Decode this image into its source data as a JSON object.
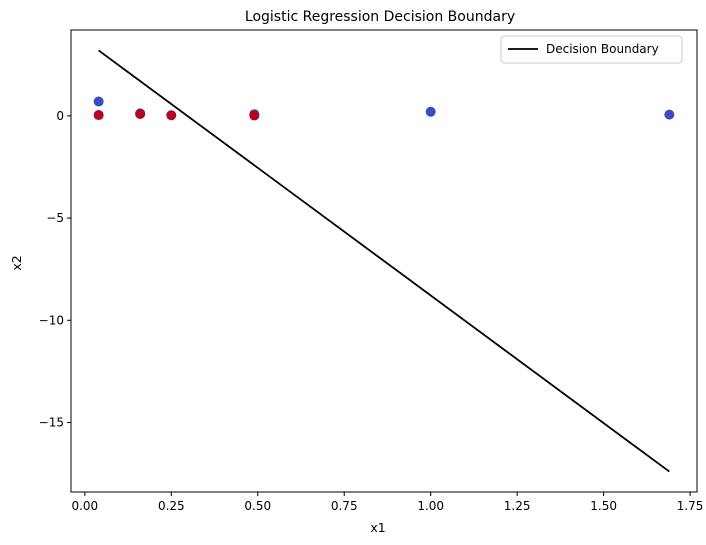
{
  "chart_data": {
    "type": "scatter",
    "title": "Logistic Regression Decision Boundary",
    "xlabel": "x1",
    "ylabel": "x2",
    "xlim": [
      -0.04,
      1.77
    ],
    "ylim": [
      -18.4,
      4.2
    ],
    "xticks": [
      0.0,
      0.25,
      0.5,
      0.75,
      1.0,
      1.25,
      1.5,
      1.75
    ],
    "xtick_labels": [
      "0.00",
      "0.25",
      "0.50",
      "0.75",
      "1.00",
      "1.25",
      "1.50",
      "1.75"
    ],
    "yticks": [
      -15,
      -10,
      -5,
      0
    ],
    "ytick_labels": [
      "−15",
      "−10",
      "−5",
      "0"
    ],
    "grid": false,
    "legend_position": "top-right",
    "colors": {
      "class0": "#3b4cc0",
      "class1": "#b40426",
      "boundary": "#000000"
    },
    "points": [
      {
        "x": 0.04,
        "y": 0.7,
        "class": 0
      },
      {
        "x": 0.04,
        "y": 0.04,
        "class": 1
      },
      {
        "x": 0.16,
        "y": 0.12,
        "class": 0
      },
      {
        "x": 0.16,
        "y": 0.09,
        "class": 1
      },
      {
        "x": 0.25,
        "y": 0.03,
        "class": 1
      },
      {
        "x": 0.49,
        "y": 0.08,
        "class": 0
      },
      {
        "x": 0.49,
        "y": 0.02,
        "class": 1
      },
      {
        "x": 1.0,
        "y": 0.2,
        "class": 0
      },
      {
        "x": 1.69,
        "y": 0.06,
        "class": 0
      }
    ],
    "series": [
      {
        "name": "Decision Boundary",
        "type": "line",
        "x": [
          0.04,
          1.69
        ],
        "y": [
          3.2,
          -17.4
        ]
      }
    ]
  }
}
